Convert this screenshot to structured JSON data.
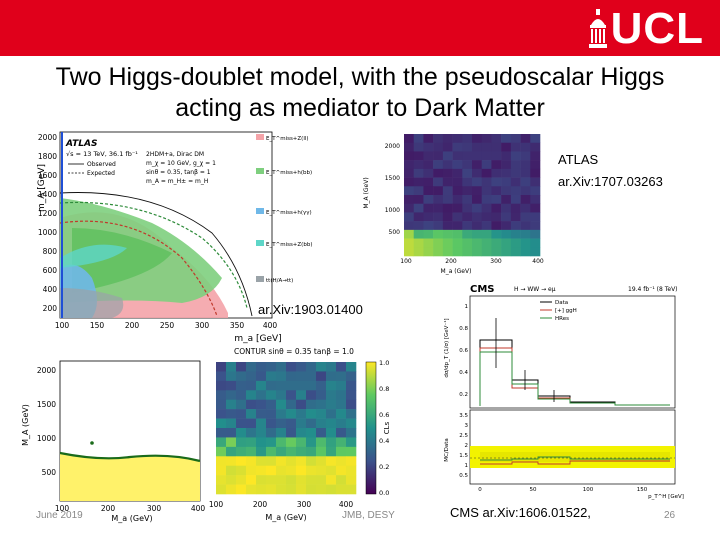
{
  "header": {
    "logo_text": "UCL",
    "accent_color": "#e0001b"
  },
  "slide": {
    "title": "Two Higgs-doublet model, with the pseudoscalar Higgs acting as mediator to Dark Matter"
  },
  "labels": {
    "atlas_line1": "ATLAS",
    "atlas_line2": "ar.Xiv:1707.03263",
    "arxiv_1903": "ar.Xiv:1903.01400",
    "cms_ref": "CMS  ar.Xiv:1606.01522,"
  },
  "footer": {
    "date": "June 2019",
    "author": "JMB, DESY",
    "page": "26"
  },
  "fig_atlas_main": {
    "panel_label": "ATLAS",
    "run_info": "√s = 13 TeV, 36.1 fb⁻¹",
    "model_lines": [
      "2HDM+a, Dirac DM",
      "m_χ = 10 GeV, g_χ = 1",
      "sinθ = 0.35, tanβ = 1",
      "m_A = m_H± = m_H"
    ],
    "legend_lines": [
      "Observed",
      "Expected"
    ],
    "channels": [
      {
        "label": "E_T^miss+Z(ll)",
        "color": "#f4a3a8"
      },
      {
        "label": "E_T^miss+h(bb)",
        "color": "#7ecf7e"
      },
      {
        "label": "E_T^miss+h(γγ)",
        "color": "#6fb8e8"
      },
      {
        "label": "E_T^miss+Z(bb)",
        "color": "#5ed6c8"
      },
      {
        "label": "tt(H/A→tt)",
        "color": "#9aa3a8"
      }
    ],
    "yticks": [
      "2000",
      "1800",
      "1600",
      "1400",
      "1200",
      "1000",
      "800",
      "600",
      "400",
      "200"
    ],
    "xticks": [
      "100",
      "150",
      "200",
      "250",
      "300",
      "350",
      "400"
    ],
    "ylabel": "m_A [GeV]",
    "xlabel": "m_a [GeV]"
  },
  "fig_heatmap_top": {
    "yticks": [
      "2000",
      "1500",
      "1000",
      "500"
    ],
    "xticks": [
      "100",
      "200",
      "300",
      "400"
    ],
    "ylabel": "M_A (GeV)",
    "xlabel": "M_a (GeV)"
  },
  "fig_contour": {
    "yticks": [
      "2000",
      "1500",
      "1000",
      "500"
    ],
    "xticks": [
      "100",
      "200",
      "300",
      "400"
    ],
    "ylabel": "M_A (GeV)",
    "xlabel": "M_a (GeV)"
  },
  "fig_heatmap_bottom": {
    "title": "CONTUR sinθ = 0.35 tanβ = 1.0",
    "xticks": [
      "100",
      "200",
      "300",
      "400"
    ],
    "xlabel": "M_a (GeV)",
    "colorbar_ticks": [
      "1.0",
      "0.8",
      "0.6",
      "0.4",
      "0.2",
      "0.0"
    ],
    "colorbar_label": "CLs"
  },
  "fig_cms": {
    "brand": "CMS",
    "process": "H → WW → eμ",
    "lumi": "19.4 fb⁻¹ (8 TeV)",
    "legend": [
      {
        "label": "Data",
        "color": "#000000"
      },
      {
        "label": "[+] ggH",
        "color": "#c0392b"
      },
      {
        "label": "HRes",
        "color": "#2e8b3a"
      }
    ],
    "top_yticks": [
      "1",
      "0.8",
      "0.6",
      "0.4",
      "0.2"
    ],
    "bottom_yticks": [
      "3.5",
      "3",
      "2.5",
      "2",
      "1.5",
      "1",
      "0.5"
    ],
    "xticks": [
      "0",
      "50",
      "100",
      "150"
    ],
    "top_ylabel": "dσ/dp_T (1/σ) [GeV⁻¹]",
    "bottom_ylabel": "MC/Data",
    "xlabel": "p_T^H [GeV]"
  }
}
